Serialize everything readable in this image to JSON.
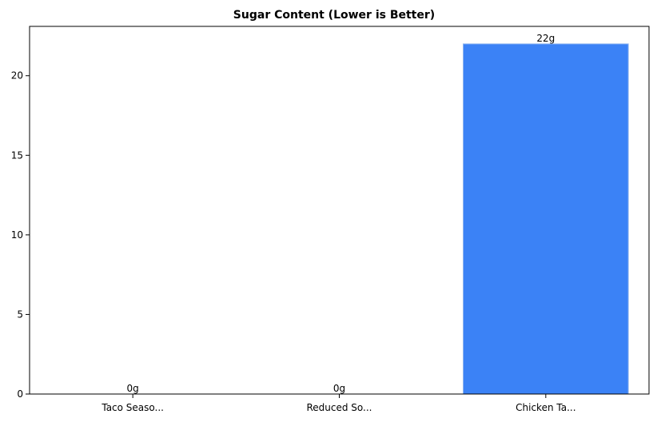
{
  "chart_data": {
    "type": "bar",
    "title": "Sugar Content (Lower is Better)",
    "xlabel": "",
    "ylabel": "",
    "categories": [
      "Taco Seaso...",
      "Reduced So...",
      "Chicken Ta..."
    ],
    "values": [
      0,
      0,
      22
    ],
    "data_labels": [
      "0g",
      "0g",
      "22g"
    ],
    "ylim": [
      0,
      23.1
    ],
    "yticks": [
      0,
      5,
      10,
      15,
      20
    ],
    "grid": false,
    "legend": "none",
    "bar_color": "#3b82f6"
  }
}
